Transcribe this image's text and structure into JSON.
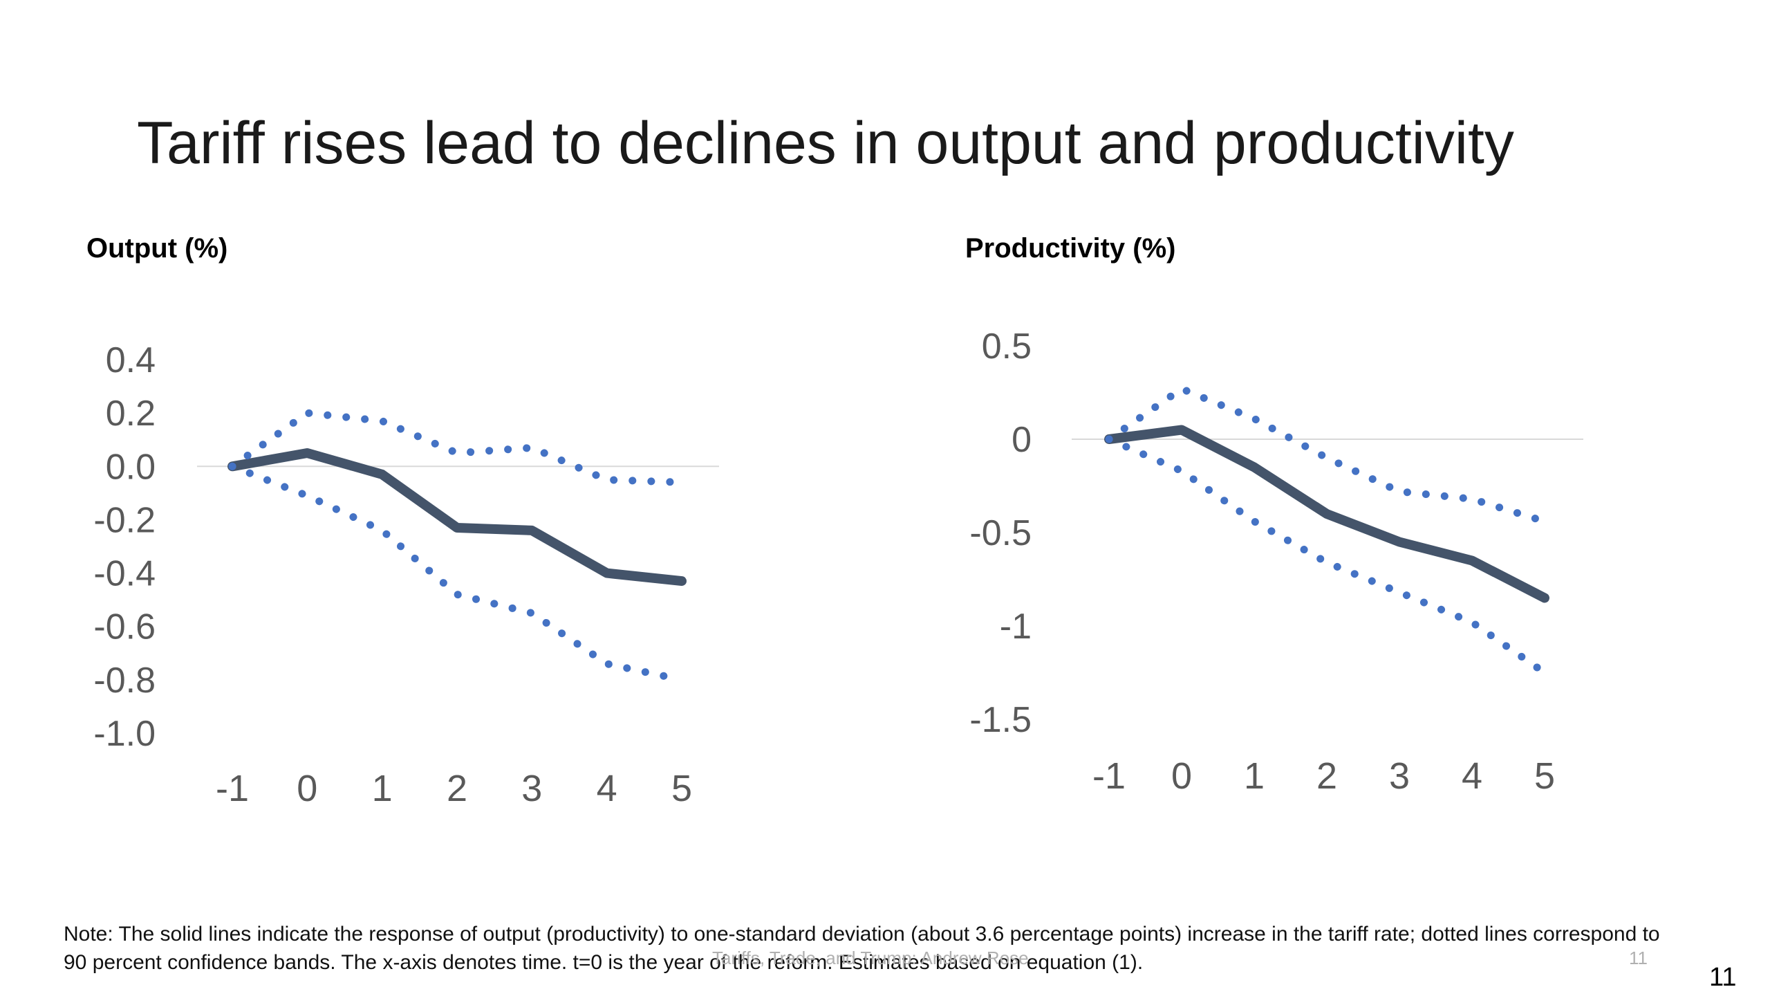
{
  "slide": {
    "title": "Tariff rises lead to declines in output and productivity",
    "note": "Note: The solid lines indicate the response of output (productivity) to one-standard deviation (about 3.6 percentage points) increase in the tariff rate; dotted lines correspond to 90 percent confidence bands. The x-axis denotes time. t=0 is the year of the reform. Estimates based on equation (1).",
    "footer_text": "Tariffs, Trade, and Trump: Andrew Rose",
    "footer_page": "11",
    "page_number": "11"
  },
  "colors": {
    "main_line": "#44546a",
    "band_dots": "#4472c4",
    "axis_text": "#595959",
    "zero_line": "#d9d9d9"
  },
  "chart_data": [
    {
      "type": "line",
      "title": "Output (%)",
      "x": [
        -1,
        0,
        1,
        2,
        3,
        4,
        5
      ],
      "x_tick_labels": [
        "-1",
        "0",
        "1",
        "2",
        "3",
        "4",
        "5"
      ],
      "y_tick_values": [
        0.4,
        0.2,
        0.0,
        -0.2,
        -0.4,
        -0.6,
        -0.8,
        -1.0
      ],
      "y_tick_labels": [
        "0.4",
        "0.2",
        "0.0",
        "-0.2",
        "-0.4",
        "-0.6",
        "-0.8",
        "-1.0"
      ],
      "ylim": [
        -1.0,
        0.4
      ],
      "grid": false,
      "legend": "none",
      "series": [
        {
          "role": "estimate",
          "values": [
            0.0,
            0.05,
            -0.03,
            -0.23,
            -0.24,
            -0.4,
            -0.43
          ]
        },
        {
          "role": "upper-band",
          "values": [
            0.0,
            0.2,
            0.17,
            0.05,
            0.07,
            -0.05,
            -0.06
          ]
        },
        {
          "role": "lower-band",
          "values": [
            0.0,
            -0.11,
            -0.24,
            -0.48,
            -0.55,
            -0.74,
            -0.8
          ]
        }
      ]
    },
    {
      "type": "line",
      "title": "Productivity (%)",
      "x": [
        -1,
        0,
        1,
        2,
        3,
        4,
        5
      ],
      "x_tick_labels": [
        "-1",
        "0",
        "1",
        "2",
        "3",
        "4",
        "5"
      ],
      "y_tick_values": [
        0.5,
        0,
        -0.5,
        -1,
        -1.5
      ],
      "y_tick_labels": [
        "0.5",
        "0",
        "-0.5",
        "-1",
        "-1.5"
      ],
      "ylim": [
        -1.5,
        0.5
      ],
      "grid": false,
      "legend": "none",
      "series": [
        {
          "role": "estimate",
          "values": [
            0.0,
            0.05,
            -0.15,
            -0.4,
            -0.55,
            -0.65,
            -0.85
          ]
        },
        {
          "role": "upper-band",
          "values": [
            0.0,
            0.27,
            0.11,
            -0.1,
            -0.28,
            -0.32,
            -0.44
          ]
        },
        {
          "role": "lower-band",
          "values": [
            0.0,
            -0.17,
            -0.44,
            -0.66,
            -0.82,
            -0.98,
            -1.25
          ]
        }
      ]
    }
  ]
}
